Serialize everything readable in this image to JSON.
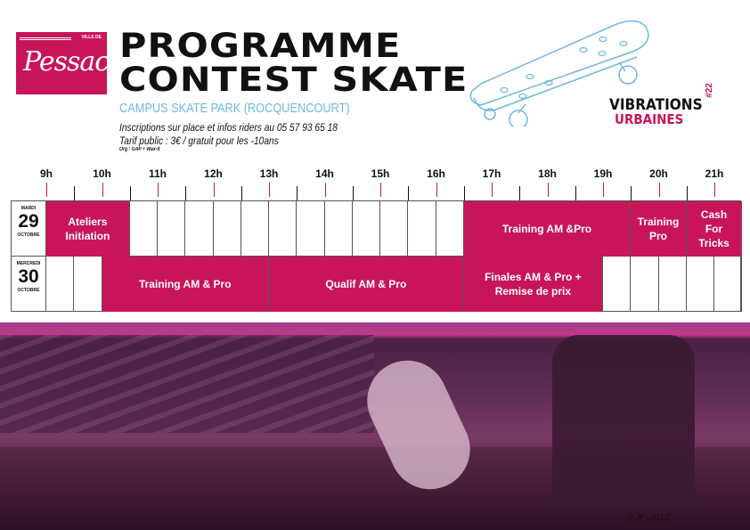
{
  "logo": {
    "ville": "VILLE DE",
    "name": "Pessac",
    "color": "#c8155a"
  },
  "title": {
    "line1": "PROGRAMME",
    "line2": "CONTEST SKATE"
  },
  "venue": "CAMPUS SKATE PARK (ROCQUENCOURT)",
  "info": [
    "Inscriptions sur place et infos riders au 05 57 93 65 18",
    "Tarif public : 3€ / gratuit pour les -10ans",
    "Org : GAP + Wax-It"
  ],
  "event_logo": {
    "number": "#22",
    "line1": "VIBRATIONS",
    "line2": "URBAINES"
  },
  "hours": [
    "9h",
    "10h",
    "11h",
    "12h",
    "13h",
    "14h",
    "15h",
    "16h",
    "17h",
    "18h",
    "19h",
    "20h",
    "21h"
  ],
  "days": [
    {
      "name": "MARDI",
      "date": "29",
      "month": "OCTOBRE",
      "events": [
        {
          "label": "Ateliers Initiation",
          "start": 9,
          "end": 10.5
        },
        {
          "label": "Training AM &Pro",
          "start": 16.5,
          "end": 19.5
        },
        {
          "label": "Training Pro",
          "start": 19.5,
          "end": 20.5
        },
        {
          "label": "Cash For Tricks",
          "start": 20.5,
          "end": 21.5
        }
      ]
    },
    {
      "name": "MERCREDI",
      "date": "30",
      "month": "OCTOBRE",
      "events": [
        {
          "label": "Training AM & Pro",
          "start": 10,
          "end": 13
        },
        {
          "label": "Qualif AM & Pro",
          "start": 13,
          "end": 16.5
        },
        {
          "label": "Finales AM & Pro + Remise de prix",
          "start": 16.5,
          "end": 19
        }
      ]
    }
  ],
  "photo_credit": "© JP LALLE",
  "colors": {
    "accent": "#c8155a",
    "venue": "#6fb8e0"
  }
}
